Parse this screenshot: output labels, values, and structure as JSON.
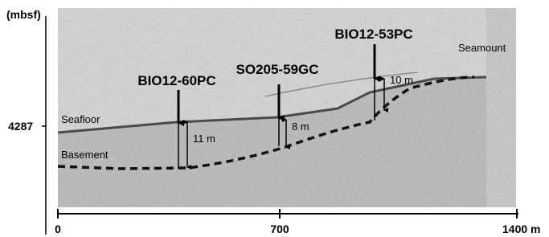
{
  "axis": {
    "y_unit": "(mbsf)",
    "y_label": "4287",
    "x_labels": [
      "0",
      "700",
      "1400 m"
    ]
  },
  "labels": {
    "seafloor": "Seafloor",
    "basement": "Basement",
    "seamount": "Seamount"
  },
  "cores": [
    {
      "name": "BIO12-60PC",
      "thickness": "11 m"
    },
    {
      "name": "SO205-59GC",
      "thickness": "8 m"
    },
    {
      "name": "BIO12-53PC",
      "thickness": "10 m"
    }
  ]
}
